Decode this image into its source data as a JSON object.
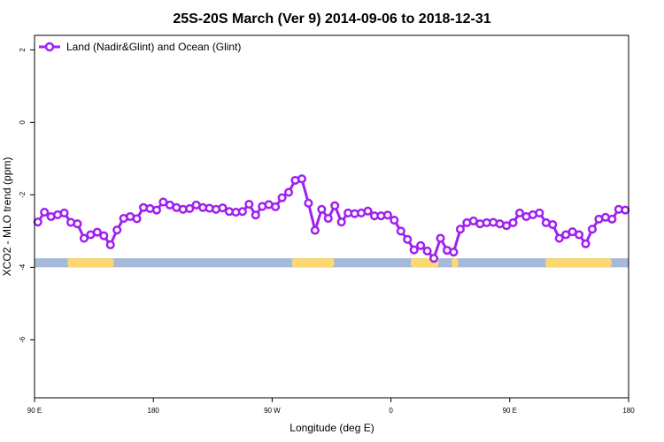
{
  "chart_data": {
    "type": "line",
    "title": "25S-20S March (Ver 9)   2014-09-06 to 2018-12-31",
    "xlabel": "Longitude (deg E)",
    "ylabel": "XCO2 - MLO trend (ppm)",
    "xlim": [
      90,
      540
    ],
    "ylim": [
      -7.6,
      2.4
    ],
    "x_ticks": [
      {
        "value": 90,
        "label": "90 E"
      },
      {
        "value": 180,
        "label": "180"
      },
      {
        "value": 270,
        "label": "90 W"
      },
      {
        "value": 360,
        "label": "0"
      },
      {
        "value": 450,
        "label": "90 E"
      },
      {
        "value": 540,
        "label": "180"
      }
    ],
    "y_ticks": [
      {
        "value": 2,
        "label": "2"
      },
      {
        "value": 0,
        "label": "0"
      },
      {
        "value": -2,
        "label": "-2"
      },
      {
        "value": -4,
        "label": "-4"
      },
      {
        "value": -6,
        "label": "-6"
      }
    ],
    "legend_position": "top-left",
    "grid": false,
    "series": [
      {
        "name": "Land (Nadir&Glint) and Ocean (Glint)",
        "color": "#a020f0",
        "x": [
          92.5,
          97.5,
          102.5,
          107.5,
          112.5,
          117.5,
          122.5,
          127.5,
          132.5,
          137.5,
          142.5,
          147.5,
          152.5,
          157.5,
          162.5,
          167.5,
          172.5,
          177.5,
          182.5,
          187.5,
          192.5,
          197.5,
          202.5,
          207.5,
          212.5,
          217.5,
          222.5,
          227.5,
          232.5,
          237.5,
          242.5,
          247.5,
          252.5,
          257.5,
          262.5,
          267.5,
          272.5,
          277.5,
          282.5,
          287.5,
          292.5,
          297.5,
          302.5,
          307.5,
          312.5,
          317.5,
          322.5,
          327.5,
          332.5,
          337.5,
          342.5,
          347.5,
          352.5,
          357.5,
          362.5,
          367.5,
          372.5,
          377.5,
          382.5,
          387.5,
          392.5,
          397.5,
          402.5,
          407.5,
          412.5,
          417.5,
          422.5,
          427.5,
          432.5,
          437.5,
          442.5,
          447.5,
          452.5,
          457.5,
          462.5,
          467.5,
          472.5,
          477.5,
          482.5,
          487.5,
          492.5,
          497.5,
          502.5,
          507.5,
          512.5,
          517.5,
          522.5,
          527.5,
          532.5,
          537.5
        ],
        "values": [
          -2.75,
          -2.48,
          -2.6,
          -2.55,
          -2.5,
          -2.76,
          -2.8,
          -3.2,
          -3.1,
          -3.03,
          -3.13,
          -3.38,
          -2.97,
          -2.65,
          -2.6,
          -2.66,
          -2.35,
          -2.38,
          -2.42,
          -2.2,
          -2.28,
          -2.35,
          -2.4,
          -2.38,
          -2.28,
          -2.35,
          -2.37,
          -2.4,
          -2.36,
          -2.46,
          -2.48,
          -2.46,
          -2.26,
          -2.56,
          -2.32,
          -2.27,
          -2.33,
          -2.08,
          -1.93,
          -1.6,
          -1.56,
          -2.23,
          -2.98,
          -2.4,
          -2.65,
          -2.3,
          -2.75,
          -2.5,
          -2.52,
          -2.5,
          -2.45,
          -2.58,
          -2.58,
          -2.56,
          -2.7,
          -3.0,
          -3.23,
          -3.52,
          -3.4,
          -3.55,
          -3.75,
          -3.2,
          -3.53,
          -3.58,
          -2.95,
          -2.77,
          -2.72,
          -2.8,
          -2.77,
          -2.76,
          -2.8,
          -2.85,
          -2.77,
          -2.5,
          -2.6,
          -2.55,
          -2.5,
          -2.77,
          -2.82,
          -3.2,
          -3.1,
          -3.02,
          -3.1,
          -3.35,
          -2.95,
          -2.67,
          -2.62,
          -2.67,
          -2.4,
          -2.42
        ]
      }
    ],
    "land_ocean_band": {
      "y_range": [
        -4.0,
        -3.75
      ],
      "ocean_color": "#a6b9d8",
      "land_color": "#fbd872",
      "land_segments": [
        [
          115,
          150
        ],
        [
          285,
          317
        ],
        [
          375,
          396
        ],
        [
          406,
          411
        ],
        [
          477,
          527
        ]
      ]
    }
  }
}
